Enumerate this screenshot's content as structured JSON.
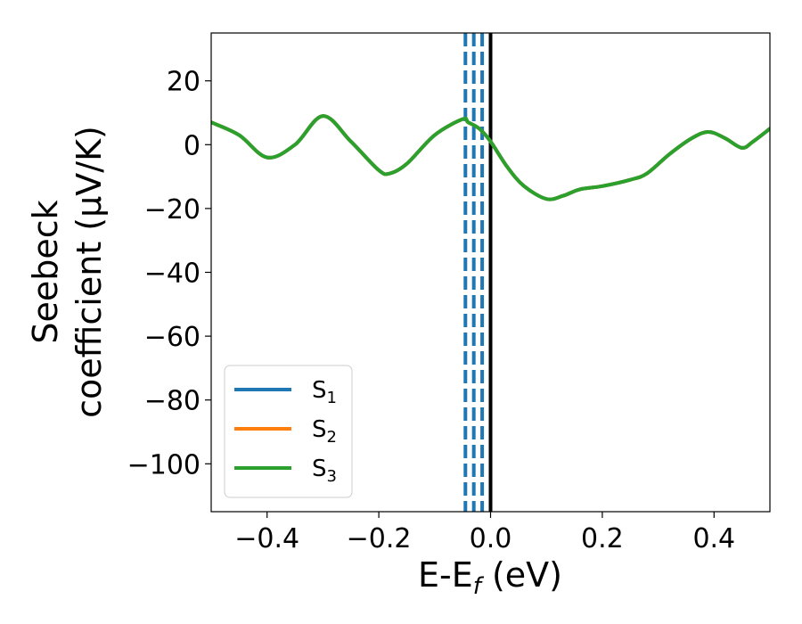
{
  "chart_data": {
    "type": "line",
    "xlabel": "E-E",
    "xlabel_sub": "f",
    "xlabel_unit": " (eV)",
    "ylabel_line1": "Seebeck",
    "ylabel_line2": "coefficient  (μV/K)",
    "xlim": [
      -0.5,
      0.5
    ],
    "ylim": [
      -115,
      35
    ],
    "xticks": [
      -0.4,
      -0.2,
      0.0,
      0.2,
      0.4
    ],
    "xtick_labels": [
      "−0.4",
      "−0.2",
      "0.0",
      "0.2",
      "0.4"
    ],
    "yticks": [
      20,
      0,
      -20,
      -40,
      -60,
      -80,
      -100
    ],
    "ytick_labels": [
      "20",
      "0",
      "−20",
      "−40",
      "−60",
      "−80",
      "−100"
    ],
    "grid": false,
    "legend_position": "lower-left",
    "series": [
      {
        "name": "S",
        "sub": "1",
        "color": "#1f77b4",
        "x": [
          -0.5,
          -0.45,
          -0.4,
          -0.35,
          -0.3,
          -0.25,
          -0.2,
          -0.18,
          -0.15,
          -0.1,
          -0.05,
          -0.04,
          -0.02,
          0.0,
          0.03,
          0.06,
          0.1,
          0.13,
          0.16,
          0.2,
          0.25,
          0.28,
          0.32,
          0.36,
          0.39,
          0.42,
          0.45,
          0.47,
          0.5
        ],
        "y": [
          7,
          3,
          -4,
          0,
          9,
          1,
          -8,
          -9,
          -6,
          3,
          8,
          7,
          5,
          1,
          -7,
          -13,
          -17,
          -16,
          -14,
          -13,
          -11,
          -9,
          -3,
          2,
          4,
          2,
          -1,
          1,
          5
        ]
      },
      {
        "name": "S",
        "sub": "2",
        "color": "#ff7f0e",
        "x": [
          -0.5,
          -0.45,
          -0.4,
          -0.35,
          -0.3,
          -0.25,
          -0.2,
          -0.18,
          -0.15,
          -0.1,
          -0.05,
          -0.04,
          -0.02,
          0.0,
          0.03,
          0.06,
          0.1,
          0.13,
          0.16,
          0.2,
          0.25,
          0.28,
          0.32,
          0.36,
          0.39,
          0.42,
          0.45,
          0.47,
          0.5
        ],
        "y": [
          7,
          3,
          -4,
          0,
          9,
          1,
          -8,
          -9,
          -6,
          3,
          8,
          7,
          5,
          1,
          -7,
          -13,
          -17,
          -16,
          -14,
          -13,
          -11,
          -9,
          -3,
          2,
          4,
          2,
          -1,
          1,
          5
        ]
      },
      {
        "name": "S",
        "sub": "3",
        "color": "#2ca02c",
        "x": [
          -0.5,
          -0.45,
          -0.4,
          -0.35,
          -0.3,
          -0.25,
          -0.2,
          -0.18,
          -0.15,
          -0.1,
          -0.05,
          -0.04,
          -0.02,
          0.0,
          0.03,
          0.06,
          0.1,
          0.13,
          0.16,
          0.2,
          0.25,
          0.28,
          0.32,
          0.36,
          0.39,
          0.42,
          0.45,
          0.47,
          0.5
        ],
        "y": [
          7,
          3,
          -4,
          0,
          9,
          1,
          -8,
          -9,
          -6,
          3,
          8,
          7,
          5,
          1,
          -7,
          -13,
          -17,
          -16,
          -14,
          -13,
          -11,
          -9,
          -3,
          2,
          4,
          2,
          -1,
          1,
          5
        ]
      }
    ],
    "vlines": [
      {
        "x": -0.045,
        "color": "#1f77b4",
        "style": "dashed"
      },
      {
        "x": -0.03,
        "color": "#1f77b4",
        "style": "dashed"
      },
      {
        "x": -0.015,
        "color": "#1f77b4",
        "style": "dashed"
      },
      {
        "x": 0.0,
        "color": "#000000",
        "style": "solid"
      }
    ]
  }
}
